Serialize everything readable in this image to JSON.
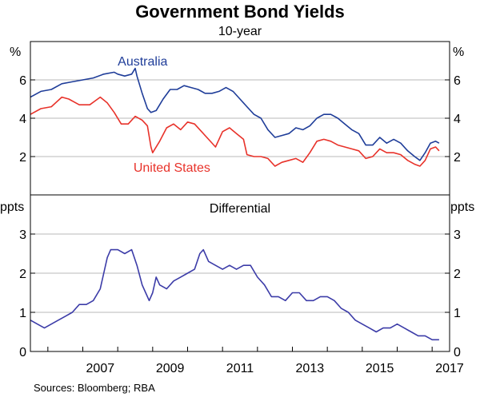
{
  "chart_data": {
    "type": "line",
    "title": "Government Bond Yields",
    "subtitle": "10-year",
    "source": "Sources:   Bloomberg; RBA",
    "x_ticks": [
      "2007",
      "2009",
      "2011",
      "2013",
      "2015",
      "2017"
    ],
    "xlim": [
      2005.5,
      2017.5
    ],
    "colors": {
      "australia": "#1f3d99",
      "united_states": "#e8322a",
      "differential": "#3c3ca8"
    },
    "panels": [
      {
        "unit": "%",
        "ylim": [
          0,
          8
        ],
        "y_ticks": [
          "2",
          "4",
          "6"
        ],
        "series": [
          {
            "name": "Australia",
            "points": [
              [
                2005.5,
                5.1
              ],
              [
                2005.8,
                5.4
              ],
              [
                2006.1,
                5.5
              ],
              [
                2006.4,
                5.8
              ],
              [
                2006.7,
                5.9
              ],
              [
                2007.0,
                6.0
              ],
              [
                2007.3,
                6.1
              ],
              [
                2007.6,
                6.3
              ],
              [
                2007.9,
                6.4
              ],
              [
                2008.0,
                6.3
              ],
              [
                2008.2,
                6.2
              ],
              [
                2008.4,
                6.3
              ],
              [
                2008.5,
                6.6
              ],
              [
                2008.55,
                6.2
              ],
              [
                2008.7,
                5.3
              ],
              [
                2008.85,
                4.5
              ],
              [
                2008.95,
                4.3
              ],
              [
                2009.1,
                4.4
              ],
              [
                2009.3,
                5.0
              ],
              [
                2009.5,
                5.5
              ],
              [
                2009.7,
                5.5
              ],
              [
                2009.9,
                5.7
              ],
              [
                2010.1,
                5.6
              ],
              [
                2010.3,
                5.5
              ],
              [
                2010.5,
                5.3
              ],
              [
                2010.7,
                5.3
              ],
              [
                2010.9,
                5.4
              ],
              [
                2011.1,
                5.6
              ],
              [
                2011.3,
                5.4
              ],
              [
                2011.5,
                5.0
              ],
              [
                2011.7,
                4.6
              ],
              [
                2011.9,
                4.2
              ],
              [
                2012.1,
                4.0
              ],
              [
                2012.3,
                3.4
              ],
              [
                2012.5,
                3.0
              ],
              [
                2012.7,
                3.1
              ],
              [
                2012.9,
                3.2
              ],
              [
                2013.1,
                3.5
              ],
              [
                2013.3,
                3.4
              ],
              [
                2013.5,
                3.6
              ],
              [
                2013.7,
                4.0
              ],
              [
                2013.9,
                4.2
              ],
              [
                2014.1,
                4.2
              ],
              [
                2014.3,
                4.0
              ],
              [
                2014.5,
                3.7
              ],
              [
                2014.7,
                3.4
              ],
              [
                2014.9,
                3.2
              ],
              [
                2015.1,
                2.6
              ],
              [
                2015.3,
                2.6
              ],
              [
                2015.5,
                3.0
              ],
              [
                2015.7,
                2.7
              ],
              [
                2015.9,
                2.9
              ],
              [
                2016.1,
                2.7
              ],
              [
                2016.3,
                2.3
              ],
              [
                2016.5,
                2.0
              ],
              [
                2016.65,
                1.8
              ],
              [
                2016.8,
                2.2
              ],
              [
                2016.95,
                2.7
              ],
              [
                2017.1,
                2.8
              ],
              [
                2017.2,
                2.7
              ]
            ]
          },
          {
            "name": "United States",
            "points": [
              [
                2005.5,
                4.2
              ],
              [
                2005.8,
                4.5
              ],
              [
                2006.1,
                4.6
              ],
              [
                2006.4,
                5.1
              ],
              [
                2006.6,
                5.0
              ],
              [
                2006.9,
                4.7
              ],
              [
                2007.2,
                4.7
              ],
              [
                2007.5,
                5.1
              ],
              [
                2007.7,
                4.8
              ],
              [
                2007.9,
                4.3
              ],
              [
                2008.1,
                3.7
              ],
              [
                2008.3,
                3.7
              ],
              [
                2008.5,
                4.1
              ],
              [
                2008.7,
                3.9
              ],
              [
                2008.85,
                3.6
              ],
              [
                2008.95,
                2.5
              ],
              [
                2009.0,
                2.2
              ],
              [
                2009.2,
                2.8
              ],
              [
                2009.4,
                3.5
              ],
              [
                2009.6,
                3.7
              ],
              [
                2009.8,
                3.4
              ],
              [
                2010.0,
                3.8
              ],
              [
                2010.2,
                3.7
              ],
              [
                2010.4,
                3.3
              ],
              [
                2010.6,
                2.9
              ],
              [
                2010.8,
                2.5
              ],
              [
                2011.0,
                3.3
              ],
              [
                2011.2,
                3.5
              ],
              [
                2011.4,
                3.2
              ],
              [
                2011.6,
                2.9
              ],
              [
                2011.7,
                2.1
              ],
              [
                2011.9,
                2.0
              ],
              [
                2012.1,
                2.0
              ],
              [
                2012.3,
                1.9
              ],
              [
                2012.5,
                1.5
              ],
              [
                2012.7,
                1.7
              ],
              [
                2012.9,
                1.8
              ],
              [
                2013.1,
                1.9
              ],
              [
                2013.3,
                1.7
              ],
              [
                2013.5,
                2.2
              ],
              [
                2013.7,
                2.8
              ],
              [
                2013.9,
                2.9
              ],
              [
                2014.1,
                2.8
              ],
              [
                2014.3,
                2.6
              ],
              [
                2014.5,
                2.5
              ],
              [
                2014.7,
                2.4
              ],
              [
                2014.9,
                2.3
              ],
              [
                2015.1,
                1.9
              ],
              [
                2015.3,
                2.0
              ],
              [
                2015.5,
                2.4
              ],
              [
                2015.7,
                2.2
              ],
              [
                2015.9,
                2.2
              ],
              [
                2016.1,
                2.1
              ],
              [
                2016.3,
                1.8
              ],
              [
                2016.5,
                1.6
              ],
              [
                2016.65,
                1.5
              ],
              [
                2016.8,
                1.8
              ],
              [
                2016.95,
                2.4
              ],
              [
                2017.1,
                2.5
              ],
              [
                2017.2,
                2.3
              ]
            ]
          }
        ]
      },
      {
        "unit": "ppts",
        "label": "Differential",
        "ylim": [
          0,
          4
        ],
        "y_ticks": [
          "0",
          "1",
          "2",
          "3"
        ],
        "series": [
          {
            "name": "Differential",
            "points": [
              [
                2005.5,
                0.8
              ],
              [
                2005.7,
                0.7
              ],
              [
                2005.9,
                0.6
              ],
              [
                2006.1,
                0.7
              ],
              [
                2006.3,
                0.8
              ],
              [
                2006.5,
                0.9
              ],
              [
                2006.7,
                1.0
              ],
              [
                2006.9,
                1.2
              ],
              [
                2007.1,
                1.2
              ],
              [
                2007.3,
                1.3
              ],
              [
                2007.5,
                1.6
              ],
              [
                2007.6,
                2.0
              ],
              [
                2007.7,
                2.4
              ],
              [
                2007.8,
                2.6
              ],
              [
                2008.0,
                2.6
              ],
              [
                2008.2,
                2.5
              ],
              [
                2008.4,
                2.6
              ],
              [
                2008.55,
                2.2
              ],
              [
                2008.7,
                1.7
              ],
              [
                2008.8,
                1.5
              ],
              [
                2008.9,
                1.3
              ],
              [
                2009.0,
                1.5
              ],
              [
                2009.1,
                1.9
              ],
              [
                2009.2,
                1.7
              ],
              [
                2009.4,
                1.6
              ],
              [
                2009.6,
                1.8
              ],
              [
                2009.8,
                1.9
              ],
              [
                2010.0,
                2.0
              ],
              [
                2010.2,
                2.1
              ],
              [
                2010.35,
                2.5
              ],
              [
                2010.45,
                2.6
              ],
              [
                2010.6,
                2.3
              ],
              [
                2010.8,
                2.2
              ],
              [
                2011.0,
                2.1
              ],
              [
                2011.2,
                2.2
              ],
              [
                2011.4,
                2.1
              ],
              [
                2011.6,
                2.2
              ],
              [
                2011.8,
                2.2
              ],
              [
                2012.0,
                1.9
              ],
              [
                2012.2,
                1.7
              ],
              [
                2012.4,
                1.4
              ],
              [
                2012.6,
                1.4
              ],
              [
                2012.8,
                1.3
              ],
              [
                2013.0,
                1.5
              ],
              [
                2013.2,
                1.5
              ],
              [
                2013.4,
                1.3
              ],
              [
                2013.6,
                1.3
              ],
              [
                2013.8,
                1.4
              ],
              [
                2014.0,
                1.4
              ],
              [
                2014.2,
                1.3
              ],
              [
                2014.4,
                1.1
              ],
              [
                2014.6,
                1.0
              ],
              [
                2014.8,
                0.8
              ],
              [
                2015.0,
                0.7
              ],
              [
                2015.2,
                0.6
              ],
              [
                2015.4,
                0.5
              ],
              [
                2015.6,
                0.6
              ],
              [
                2015.8,
                0.6
              ],
              [
                2016.0,
                0.7
              ],
              [
                2016.2,
                0.6
              ],
              [
                2016.4,
                0.5
              ],
              [
                2016.6,
                0.4
              ],
              [
                2016.8,
                0.4
              ],
              [
                2017.0,
                0.3
              ],
              [
                2017.2,
                0.3
              ]
            ]
          }
        ]
      }
    ]
  }
}
